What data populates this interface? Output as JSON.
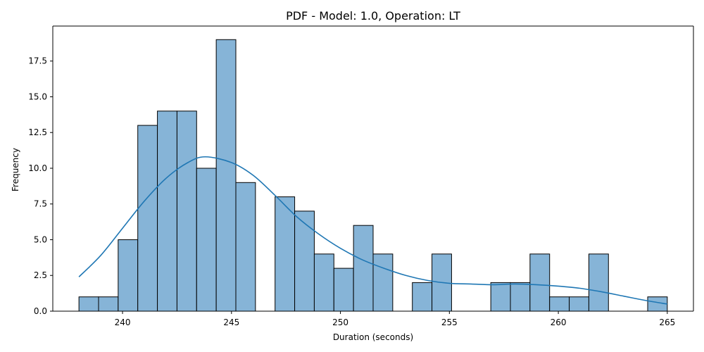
{
  "chart_data": {
    "type": "bar",
    "title": "PDF - Model: 1.0, Operation: LT",
    "xlabel": "Duration (seconds)",
    "ylabel": "Frequency",
    "xlim": [
      236.8,
      266.2
    ],
    "ylim": [
      0,
      19.95
    ],
    "xticks": [
      240,
      245,
      250,
      255,
      260,
      265
    ],
    "xtick_labels": [
      "240",
      "245",
      "250",
      "255",
      "260",
      "265"
    ],
    "yticks": [
      0,
      2.5,
      5,
      7.5,
      10,
      12.5,
      15,
      17.5
    ],
    "ytick_labels": [
      "0.0",
      "2.5",
      "5.0",
      "7.5",
      "10.0",
      "12.5",
      "15.0",
      "17.5"
    ],
    "grid": false,
    "bar_color": "#86b4d7",
    "bar_edge_color": "#000000",
    "line_color": "#1f77b4",
    "bins": [
      {
        "start": 238.0,
        "end": 238.9,
        "count": 1
      },
      {
        "start": 238.9,
        "end": 239.8,
        "count": 1
      },
      {
        "start": 239.8,
        "end": 240.7,
        "count": 5
      },
      {
        "start": 240.7,
        "end": 241.6,
        "count": 13
      },
      {
        "start": 241.6,
        "end": 242.5,
        "count": 14
      },
      {
        "start": 242.5,
        "end": 243.4,
        "count": 14
      },
      {
        "start": 243.4,
        "end": 244.3,
        "count": 10
      },
      {
        "start": 244.3,
        "end": 245.2,
        "count": 19
      },
      {
        "start": 245.2,
        "end": 246.1,
        "count": 9
      },
      {
        "start": 246.1,
        "end": 247.0,
        "count": 0
      },
      {
        "start": 247.0,
        "end": 247.9,
        "count": 8
      },
      {
        "start": 247.9,
        "end": 248.8,
        "count": 7
      },
      {
        "start": 248.8,
        "end": 249.7,
        "count": 4
      },
      {
        "start": 249.7,
        "end": 250.6,
        "count": 3
      },
      {
        "start": 250.6,
        "end": 251.5,
        "count": 6
      },
      {
        "start": 251.5,
        "end": 252.4,
        "count": 4
      },
      {
        "start": 252.4,
        "end": 253.3,
        "count": 0
      },
      {
        "start": 253.3,
        "end": 254.2,
        "count": 2
      },
      {
        "start": 254.2,
        "end": 255.1,
        "count": 4
      },
      {
        "start": 255.1,
        "end": 256.0,
        "count": 0
      },
      {
        "start": 256.0,
        "end": 256.9,
        "count": 0
      },
      {
        "start": 256.9,
        "end": 257.8,
        "count": 2
      },
      {
        "start": 257.8,
        "end": 258.7,
        "count": 2
      },
      {
        "start": 258.7,
        "end": 259.6,
        "count": 4
      },
      {
        "start": 259.6,
        "end": 260.5,
        "count": 1
      },
      {
        "start": 260.5,
        "end": 261.4,
        "count": 1
      },
      {
        "start": 261.4,
        "end": 262.3,
        "count": 4
      },
      {
        "start": 262.3,
        "end": 263.2,
        "count": 0
      },
      {
        "start": 263.2,
        "end": 264.1,
        "count": 0
      },
      {
        "start": 264.1,
        "end": 265.0,
        "count": 1
      }
    ],
    "kde": {
      "x": [
        238.0,
        239.0,
        240.0,
        241.0,
        242.0,
        243.0,
        243.8,
        245.0,
        246.0,
        247.0,
        248.0,
        249.0,
        250.0,
        251.0,
        252.0,
        253.0,
        254.0,
        255.0,
        256.0,
        257.0,
        258.0,
        259.0,
        260.0,
        261.0,
        262.0,
        263.0,
        264.0,
        265.0
      ],
      "y": [
        2.4,
        3.9,
        5.8,
        7.7,
        9.3,
        10.4,
        10.8,
        10.4,
        9.5,
        8.1,
        6.6,
        5.4,
        4.4,
        3.6,
        3.0,
        2.5,
        2.15,
        1.95,
        1.9,
        1.85,
        1.9,
        1.85,
        1.75,
        1.6,
        1.35,
        1.05,
        0.75,
        0.5
      ]
    }
  }
}
